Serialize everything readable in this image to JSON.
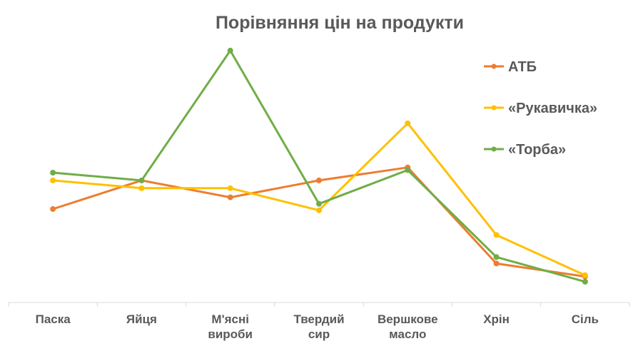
{
  "chart_data": {
    "type": "line",
    "title": "Порівняння цін на продукти",
    "xlabel": "",
    "ylabel": "",
    "categories": [
      "Паска",
      "Яйця",
      "М'ясні вироби",
      "Твердий сир",
      "Вершкове масло",
      "Хрін",
      "Сіль"
    ],
    "category_lines": [
      [
        "Паска"
      ],
      [
        "Яйця"
      ],
      [
        "М'ясні",
        "вироби"
      ],
      [
        "Твердий",
        "сир"
      ],
      [
        "Вершкове",
        "масло"
      ],
      [
        "Хрін"
      ],
      [
        "Сіль"
      ]
    ],
    "ylim": [
      0,
      100
    ],
    "grid": false,
    "y_axis_labels_visible": false,
    "legend_position": "right",
    "series": [
      {
        "name": "АТБ",
        "color": "#ED7D31",
        "values": [
          36,
          47,
          40.5,
          47,
          52,
          15,
          10
        ]
      },
      {
        "name": "«Рукавичка»",
        "color": "#FFC000",
        "values": [
          47,
          44,
          44,
          35.5,
          69,
          26,
          10.5
        ]
      },
      {
        "name": "«Торба»",
        "color": "#70AD47",
        "values": [
          50,
          47,
          97,
          38,
          51,
          17.5,
          8
        ]
      }
    ]
  }
}
